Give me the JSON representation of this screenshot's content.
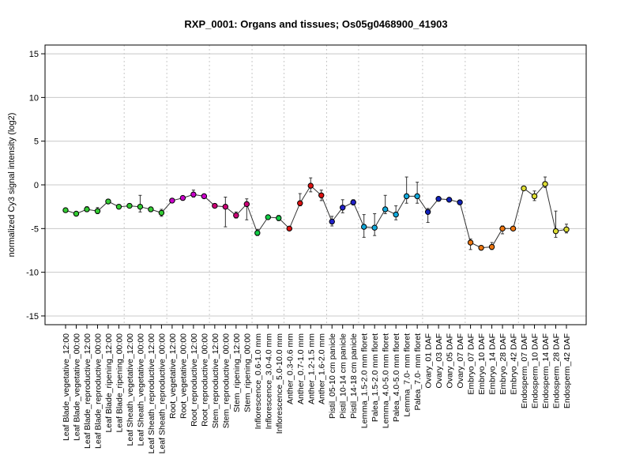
{
  "chart_data": {
    "type": "line",
    "title": "RXP_0001: Organs and tissues; Os05g0468900_41903",
    "xlabel": "",
    "ylabel": "normalized Cy3 signal intensity (log2)",
    "ylim": [
      -16,
      16
    ],
    "yticks": [
      -15,
      -10,
      -5,
      0,
      5,
      10,
      15
    ],
    "grid": true,
    "categories": [
      "Leaf Blade_vegetative_12:00",
      "Leaf Blade_vegetative_00:00",
      "Leaf Blade_reproductive_12:00",
      "Leaf Blade_reproductive_00:00",
      "Leaf Blade_ripening_12:00",
      "Leaf Blade_ripening_00:00",
      "Leaf Sheath_vegetative_12:00",
      "Leaf Sheath_vegetative_00:00",
      "Leaf Sheath_reproductive_12:00",
      "Leaf Sheath_reproductive_00:00",
      "Root_vegetative_12:00",
      "Root_vegetative_00:00",
      "Root_reproductive_12:00",
      "Root_reproductive_00:00",
      "Stem_reproductive_12:00",
      "Stem_reproductive_00:00",
      "Stem_ripening_12:00",
      "Stem_ripening_00:00",
      "Inflorescence_0.6-1.0 mm",
      "Inflorescence_3.0-4.0 mm",
      "Inflorescence_5.0-10.0 mm",
      "Anther_0.3-0.6 mm",
      "Anther_0.7-1.0 mm",
      "Anther_1.2-1.5 mm",
      "Anther_1.6-2.0 mm",
      "Pistil_05-10 cm panicle",
      "Pistil_10-14 cm panicle",
      "Pistil_14-18 cm panicle",
      "Lemma_1.5-2.0 mm floret",
      "Palea_1.5-2.0 mm floret",
      "Lemma_4.0-5.0 mm floret",
      "Palea_4.0-5.0 mm floret",
      "Lemma_7.0- mm floret",
      "Palea_7.0- mm floret",
      "Ovary_01 DAF",
      "Ovary_03 DAF",
      "Ovary_05 DAF",
      "Ovary_07 DAF",
      "Embryo_07 DAF",
      "Embryo_10 DAF",
      "Embryo_14 DAF",
      "Embryo_28 DAF",
      "Embryo_42 DAF",
      "Endosperm_07 DAF",
      "Endosperm_10 DAF",
      "Endosperm_14 DAF",
      "Endosperm_28 DAF",
      "Endosperm_42 DAF"
    ],
    "values": [
      -2.9,
      -3.3,
      -2.8,
      -3.0,
      -1.9,
      -2.5,
      -2.4,
      -2.5,
      -2.8,
      -3.2,
      -1.8,
      -1.5,
      -1.1,
      -1.3,
      -2.4,
      -2.5,
      -3.5,
      -2.2,
      -5.5,
      -3.7,
      -3.8,
      -5.0,
      -2.1,
      -0.1,
      -1.2,
      -4.2,
      -2.6,
      -2.0,
      -4.8,
      -4.9,
      -2.8,
      -3.4,
      -1.3,
      -1.3,
      -3.1,
      -1.6,
      -1.7,
      -2.0,
      -6.6,
      -7.2,
      -7.1,
      -5.0,
      -5.0,
      -0.4,
      -1.3,
      0.1,
      -5.3,
      -5.1
    ],
    "err_low": [
      -3.1,
      -3.5,
      -3.0,
      -3.3,
      -2.1,
      -2.7,
      -2.6,
      -3.1,
      -3.0,
      -3.6,
      -2.0,
      -1.6,
      -1.4,
      -1.5,
      -2.6,
      -4.8,
      -3.8,
      -4.0,
      -5.8,
      -3.9,
      -4.1,
      -5.2,
      -2.4,
      -0.8,
      -1.8,
      -4.7,
      -3.2,
      -2.3,
      -6.0,
      -5.8,
      -3.3,
      -4.0,
      -2.1,
      -2.1,
      -4.3,
      -1.8,
      -1.9,
      -2.2,
      -7.4,
      -7.4,
      -7.4,
      -5.6,
      -5.2,
      -0.6,
      -1.8,
      -0.3,
      -6.0,
      -5.5
    ],
    "err_high": [
      -2.7,
      -3.1,
      -2.5,
      -2.6,
      -1.7,
      -2.3,
      -2.2,
      -1.2,
      -2.6,
      -2.8,
      -1.6,
      -1.3,
      -0.6,
      -1.1,
      -2.2,
      -1.4,
      -3.1,
      -1.6,
      -5.1,
      -3.5,
      -3.5,
      -4.8,
      -1.0,
      0.8,
      -0.6,
      -3.6,
      -1.7,
      -1.7,
      -3.4,
      -3.3,
      -1.2,
      -2.4,
      0.9,
      0.3,
      -2.7,
      -1.4,
      -1.5,
      -1.8,
      -6.2,
      -7.0,
      -6.6,
      -4.7,
      -4.8,
      -0.2,
      -0.7,
      0.9,
      -3.0,
      -4.5
    ],
    "colors": [
      "#33cc33",
      "#33cc33",
      "#33cc33",
      "#33cc33",
      "#33cc33",
      "#33cc33",
      "#33cc33",
      "#33cc33",
      "#33cc33",
      "#33cc33",
      "#cc00cc",
      "#cc00cc",
      "#cc00cc",
      "#cc00cc",
      "#cc0077",
      "#cc0077",
      "#cc0077",
      "#cc0077",
      "#11cc44",
      "#11cc44",
      "#11cc44",
      "#dd1111",
      "#dd1111",
      "#dd1111",
      "#dd1111",
      "#2222cc",
      "#2222cc",
      "#2222cc",
      "#11aadd",
      "#11aadd",
      "#11aadd",
      "#11aadd",
      "#11aadd",
      "#11aadd",
      "#1122bb",
      "#1122bb",
      "#1122bb",
      "#1122bb",
      "#ee7711",
      "#ee7711",
      "#ee7711",
      "#ee7711",
      "#ee7711",
      "#dddd33",
      "#dddd33",
      "#dddd33",
      "#dddd33",
      "#dddd33"
    ],
    "group_separators_after": [
      5,
      9,
      13,
      17,
      20,
      24,
      27,
      33,
      37,
      42
    ]
  }
}
